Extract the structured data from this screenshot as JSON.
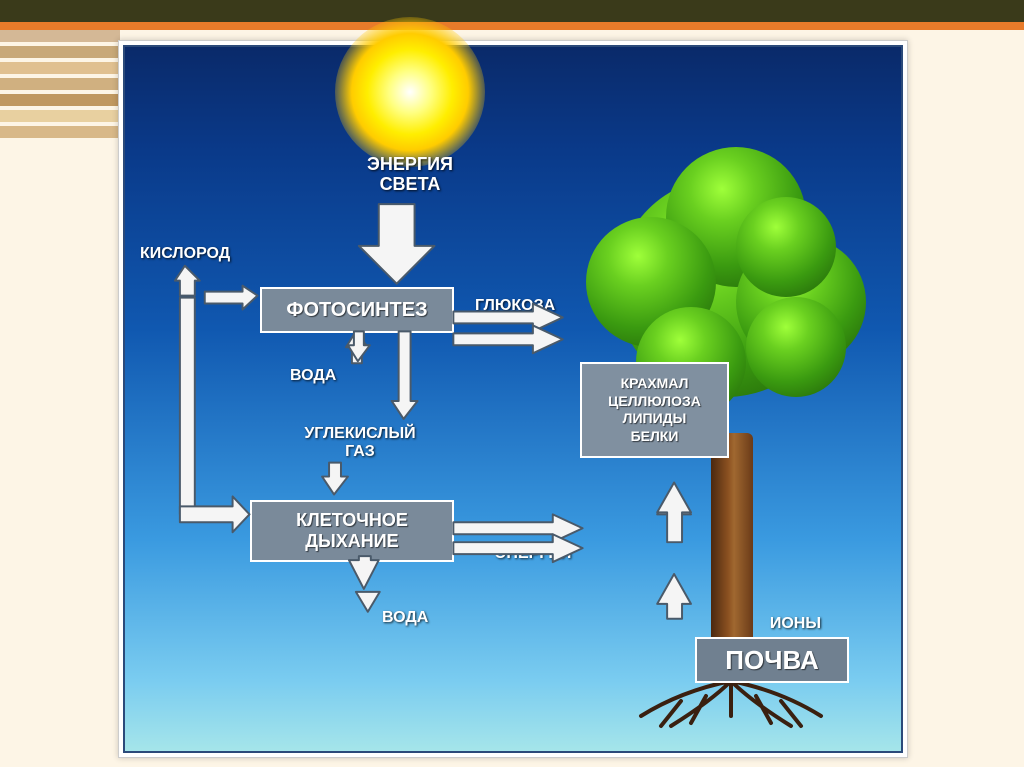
{
  "diagram": {
    "type": "flowchart",
    "background": {
      "gradient_top": "#0a2a6a",
      "gradient_bottom": "#a5e5ea",
      "frame_border": "#2b4a7a",
      "page_bg": "#fdf5e6",
      "top_bar": "#3a3a1a",
      "orange": "#e87b2a"
    },
    "side_stripe_colors": [
      "#d4b896",
      "#c8a878",
      "#e0c090",
      "#d0b080",
      "#c09860",
      "#e8d0a0",
      "#d8b888"
    ],
    "sun": {
      "colors": [
        "#ffffff",
        "#ffff80",
        "#ffee00",
        "#ffcc00"
      ]
    },
    "tree": {
      "canopy_colors": [
        "#9fff3a",
        "#6ad020",
        "#3a9a10",
        "#1e5a08"
      ],
      "trunk_colors": [
        "#4a2810",
        "#8a5020",
        "#a06830"
      ],
      "root_color": "#3a2010"
    },
    "labels": {
      "light_energy": {
        "line1": "ЭНЕРГИЯ",
        "line2": "СВЕТА",
        "fontsize": 18,
        "color": "#ffffff"
      },
      "oxygen": {
        "text": "КИСЛОРОД",
        "fontsize": 16
      },
      "water_top": {
        "text": "ВОДА",
        "fontsize": 16
      },
      "carbon_dioxide": {
        "line1": "УГЛЕКИСЛЫЙ",
        "line2": "ГАЗ",
        "fontsize": 16
      },
      "glucose": {
        "text": "ГЛЮКОЗА",
        "fontsize": 16
      },
      "energy": {
        "text": "ЭНЕРГИЯ",
        "fontsize": 16
      },
      "water_bottom": {
        "text": "ВОДА",
        "fontsize": 16
      },
      "ions": {
        "text": "ИОНЫ",
        "fontsize": 16
      }
    },
    "nodes": {
      "photosynthesis": {
        "text": "ФОТОСИНТЕЗ",
        "fontsize": 20,
        "bg": "#7a8a9a",
        "border": "#ffffff"
      },
      "cell_respiration": {
        "line1": "КЛЕТОЧНОЕ",
        "line2": "ДЫХАНИЕ",
        "fontsize": 18,
        "bg": "#7a8a9a"
      },
      "compounds": {
        "line1": "КРАХМАЛ",
        "line2": "ЦЕЛЛЮЛОЗА",
        "line3": "ЛИПИДЫ",
        "line4": "БЕЛКИ",
        "fontsize": 14,
        "bg": "#8090a0"
      },
      "soil": {
        "text": "ПОЧВА",
        "fontsize": 26,
        "bg": "#708090"
      }
    },
    "arrows": {
      "fill": "#f5f5f5",
      "stroke": "#4a5a6a",
      "stroke_width": 2,
      "edges": [
        {
          "from": "sun",
          "to": "photosynthesis",
          "style": "block-down"
        },
        {
          "from": "oxygen",
          "to": "photosynthesis",
          "style": "double"
        },
        {
          "from": "photosynthesis",
          "to": "glucose/tree",
          "style": "double-right"
        },
        {
          "from": "water",
          "to": "photosynthesis",
          "style": "up"
        },
        {
          "from": "carbon_dioxide",
          "to": "photosynthesis",
          "style": "up"
        },
        {
          "from": "cell_respiration",
          "to": "carbon_dioxide",
          "style": "up"
        },
        {
          "from": "oxygen",
          "to": "cell_respiration",
          "style": "down-right"
        },
        {
          "from": "cell_respiration",
          "to": "energy/tree",
          "style": "double-right"
        },
        {
          "from": "cell_respiration",
          "to": "water_bottom",
          "style": "down"
        },
        {
          "from": "soil",
          "to": "compounds/tree",
          "style": "up-double"
        }
      ]
    }
  }
}
